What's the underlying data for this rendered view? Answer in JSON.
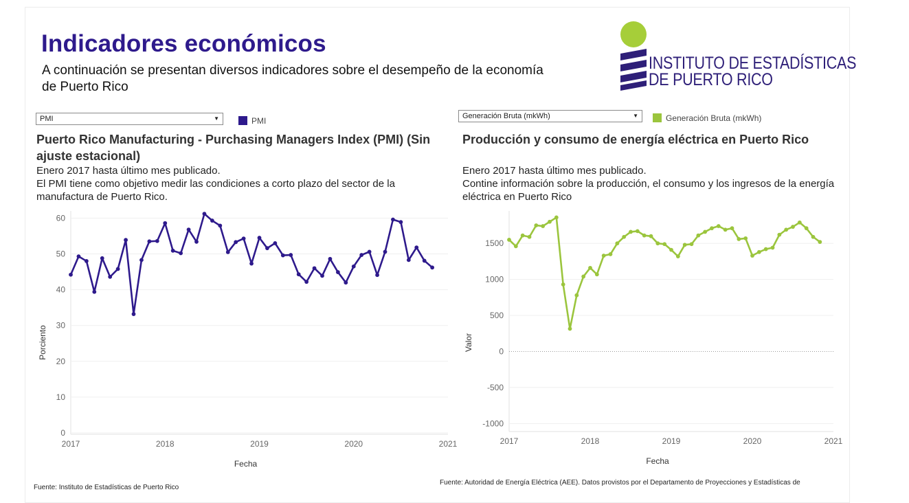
{
  "header": {
    "title": "Indicadores económicos",
    "subtitle": "A continuación se presentan diversos indicadores sobre el desempeño de la economía de Puerto Rico",
    "logo_line1": "INSTITUTO DE ESTADÍSTICAS",
    "logo_line2": "DE PUERTO RICO"
  },
  "left": {
    "dropdown_value": "PMI",
    "legend_label": "PMI",
    "chart_title": "Puerto Rico Manufacturing - Purchasing Managers Index (PMI) (Sin ajuste estacional)",
    "desc1": "Enero 2017 hasta último mes publicado.",
    "desc2": "El PMI tiene como objetivo medir las condiciones a corto plazo del sector de la manufactura de Puerto Rico.",
    "source": "Fuente: Instituto de Estadísticas de Puerto Rico"
  },
  "right": {
    "dropdown_value": "Generación Bruta (mkWh)",
    "legend_label": "Generación Bruta (mkWh)",
    "chart_title": "Producción y consumo de energía eléctrica en Puerto Rico",
    "desc1": "Enero 2017 hasta último mes publicado.",
    "desc2": "Contine información sobre la producción, el consumo y los ingresos de la energía eléctrica en Puerto Rico",
    "source": "Fuente: Autoridad de Energía Eléctrica (AEE). Datos provistos por el Departamento de Proyecciones y Estadísticas de"
  },
  "colors": {
    "title": "#2e1a8c",
    "pmi": "#2e1a8c",
    "energy": "#9bc53d",
    "logo_green": "#a6ce39",
    "logo_navy": "#2e1f78"
  },
  "chart_data": [
    {
      "type": "line",
      "title": "Puerto Rico Manufacturing - Purchasing Managers Index (PMI) (Sin ajuste estacional)",
      "xlabel": "Fecha",
      "ylabel": "Porciento",
      "xlim": [
        2017,
        2021
      ],
      "ylim": [
        0,
        62
      ],
      "x_ticks": [
        "2017",
        "2018",
        "2019",
        "2020",
        "2021"
      ],
      "y_ticks": [
        0,
        10,
        20,
        30,
        40,
        50,
        60
      ],
      "series": [
        {
          "name": "PMI",
          "x_start": "2017-01",
          "frequency": "monthly",
          "values": [
            44.2,
            49.3,
            48.0,
            39.4,
            48.8,
            43.6,
            45.8,
            53.9,
            33.2,
            48.3,
            53.5,
            53.6,
            58.6,
            50.9,
            50.2,
            56.8,
            53.4,
            61.2,
            59.3,
            57.9,
            50.5,
            53.3,
            54.3,
            47.3,
            54.5,
            51.6,
            53.0,
            49.6,
            49.7,
            44.3,
            42.2,
            46.0,
            43.9,
            48.6,
            44.9,
            42.0,
            46.5,
            49.7,
            50.6,
            44.1,
            50.6,
            59.6,
            58.9,
            48.3,
            51.8,
            48.1,
            46.2
          ]
        }
      ],
      "grid": true,
      "legend_position": "top"
    },
    {
      "type": "line",
      "title": "Producción y consumo de energía eléctrica en Puerto Rico",
      "xlabel": "Fecha",
      "ylabel": "Valor",
      "xlim": [
        2017,
        2021
      ],
      "ylim": [
        -1130,
        1950
      ],
      "x_ticks": [
        "2017",
        "2018",
        "2019",
        "2020",
        "2021"
      ],
      "y_ticks": [
        -1000,
        -500,
        0,
        500,
        1000,
        1500
      ],
      "series": [
        {
          "name": "Generación Bruta (mkWh)",
          "x_start": "2017-01",
          "frequency": "monthly",
          "values": [
            1550,
            1460,
            1610,
            1590,
            1750,
            1740,
            1800,
            1860,
            930,
            315,
            780,
            1040,
            1160,
            1070,
            1330,
            1350,
            1500,
            1590,
            1660,
            1670,
            1610,
            1600,
            1500,
            1490,
            1410,
            1320,
            1480,
            1490,
            1610,
            1660,
            1710,
            1740,
            1690,
            1710,
            1560,
            1570,
            1330,
            1380,
            1420,
            1440,
            1620,
            1690,
            1730,
            1790,
            1710,
            1590,
            1520
          ]
        }
      ],
      "grid": true,
      "legend_position": "top"
    }
  ]
}
